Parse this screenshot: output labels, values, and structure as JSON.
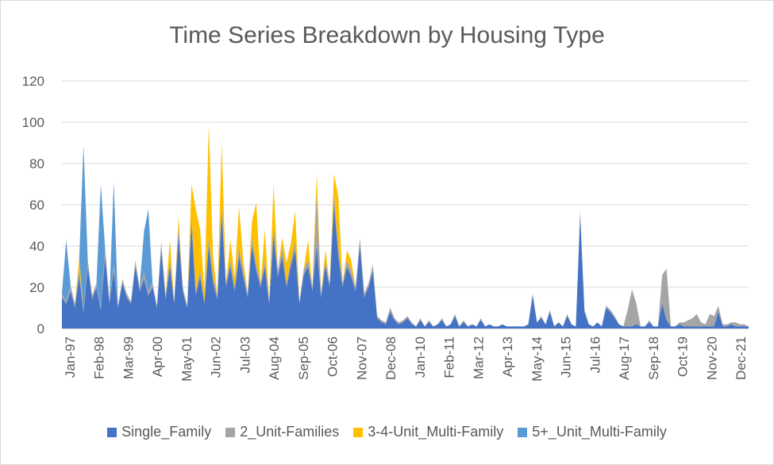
{
  "chart_data": {
    "type": "area",
    "title": "Time Series Breakdown by Housing Type",
    "xlabel": "",
    "ylabel": "",
    "ylim": [
      0,
      120
    ],
    "y_ticks": [
      0,
      20,
      40,
      60,
      80,
      100,
      120
    ],
    "stacked": true,
    "grid": true,
    "legend_position": "bottom",
    "x_tick_labels": [
      "Jan-97",
      "Feb-98",
      "Mar-99",
      "Apr-00",
      "May-01",
      "Jun-02",
      "Jul-03",
      "Aug-04",
      "Sep-05",
      "Oct-06",
      "Nov-07",
      "Dec-08",
      "Jan-10",
      "Feb-11",
      "Mar-12",
      "Apr-13",
      "May-14",
      "Jun-15",
      "Jul-16",
      "Aug-17",
      "Sep-18",
      "Oct-19",
      "Nov-20",
      "Dec-21"
    ],
    "series": [
      {
        "name": "Single_Family",
        "color": "#4472c4",
        "values": [
          15,
          12,
          18,
          10,
          25,
          8,
          30,
          14,
          20,
          9,
          35,
          12,
          28,
          10,
          22,
          15,
          12,
          30,
          18,
          24,
          16,
          20,
          10,
          38,
          14,
          30,
          12,
          45,
          18,
          10,
          50,
          16,
          25,
          12,
          40,
          22,
          14,
          55,
          20,
          30,
          18,
          35,
          25,
          15,
          40,
          28,
          20,
          30,
          12,
          45,
          25,
          35,
          20,
          30,
          38,
          12,
          26,
          30,
          18,
          40,
          15,
          30,
          20,
          60,
          35,
          20,
          30,
          25,
          18,
          40,
          15,
          20,
          28,
          5,
          3,
          2,
          8,
          4,
          2,
          3,
          5,
          2,
          1,
          4,
          1,
          3,
          1,
          2,
          4,
          1,
          2,
          6,
          1,
          3,
          1,
          2,
          1,
          4,
          1,
          2,
          1,
          1,
          2,
          1,
          1,
          1,
          1,
          1,
          2,
          16,
          3,
          5,
          2,
          8,
          1,
          3,
          1,
          6,
          2,
          1,
          55,
          8,
          2,
          1,
          3,
          1,
          10,
          8,
          5,
          2,
          1,
          1,
          1,
          2,
          1,
          1,
          3,
          1,
          1,
          12,
          4,
          1,
          1,
          2,
          1,
          1,
          1,
          1,
          1,
          1,
          1,
          1,
          8,
          1,
          1,
          2,
          1,
          1,
          1,
          1
        ]
      },
      {
        "name": "2_Unit-Families",
        "color": "#a5a5a5",
        "values": [
          2,
          1,
          3,
          2,
          4,
          1,
          3,
          2,
          2,
          1,
          4,
          2,
          3,
          1,
          2,
          2,
          1,
          3,
          2,
          3,
          2,
          2,
          1,
          4,
          2,
          3,
          1,
          4,
          2,
          1,
          5,
          2,
          3,
          1,
          4,
          3,
          2,
          5,
          2,
          3,
          2,
          4,
          3,
          2,
          4,
          3,
          2,
          3,
          1,
          5,
          3,
          4,
          2,
          3,
          4,
          1,
          3,
          3,
          2,
          25,
          2,
          3,
          2,
          5,
          4,
          2,
          3,
          3,
          2,
          4,
          2,
          2,
          3,
          1,
          1,
          1,
          2,
          1,
          1,
          1,
          1,
          1,
          0,
          1,
          0,
          1,
          0,
          0,
          1,
          0,
          0,
          1,
          0,
          1,
          0,
          0,
          0,
          1,
          0,
          0,
          0,
          0,
          0,
          0,
          0,
          0,
          0,
          0,
          0,
          1,
          0,
          1,
          0,
          1,
          0,
          0,
          0,
          1,
          0,
          0,
          2,
          1,
          0,
          0,
          0,
          0,
          1,
          1,
          1,
          0,
          0,
          8,
          18,
          10,
          0,
          0,
          1,
          0,
          0,
          14,
          25,
          0,
          0,
          1,
          2,
          3,
          4,
          6,
          2,
          1,
          6,
          5,
          3,
          1,
          1,
          1,
          2,
          1,
          1
        ]
      },
      {
        "name": "3-4-Unit_Multi-Family",
        "color": "#ffc000",
        "values": [
          0,
          0,
          0,
          0,
          5,
          0,
          0,
          0,
          0,
          0,
          0,
          0,
          0,
          0,
          0,
          0,
          0,
          0,
          0,
          0,
          0,
          0,
          0,
          0,
          0,
          10,
          0,
          5,
          0,
          0,
          15,
          40,
          20,
          5,
          55,
          10,
          0,
          30,
          0,
          10,
          5,
          20,
          5,
          0,
          8,
          30,
          0,
          15,
          0,
          20,
          0,
          5,
          10,
          8,
          15,
          0,
          0,
          10,
          0,
          10,
          0,
          5,
          0,
          10,
          25,
          0,
          5,
          5,
          0,
          0,
          0,
          0,
          0,
          0,
          0,
          0,
          0,
          0,
          0,
          0,
          0,
          0,
          0,
          0,
          0,
          0,
          0,
          0,
          0,
          0,
          0,
          0,
          0,
          0,
          0,
          0,
          0,
          0,
          0,
          0,
          0,
          0,
          0,
          0,
          0,
          0,
          0,
          0,
          0,
          0,
          0,
          0,
          0,
          0,
          0,
          0,
          0,
          0,
          0,
          0,
          0,
          0,
          0,
          0,
          0,
          0,
          0,
          0,
          0,
          0,
          0,
          0,
          0,
          0,
          0,
          0,
          0,
          0,
          0,
          0,
          0,
          0,
          0,
          0,
          0,
          0,
          0,
          0,
          0,
          0,
          0,
          0,
          0,
          0,
          0,
          0,
          0,
          0,
          0
        ]
      },
      {
        "name": "5+_Unit_Multi-Family",
        "color": "#5b9bd5",
        "values": [
          0,
          30,
          0,
          0,
          0,
          80,
          0,
          0,
          0,
          60,
          0,
          0,
          40,
          0,
          0,
          0,
          0,
          0,
          0,
          20,
          40,
          0,
          0,
          0,
          0,
          0,
          0,
          0,
          0,
          0,
          0,
          0,
          0,
          0,
          0,
          0,
          0,
          0,
          0,
          0,
          0,
          0,
          0,
          0,
          0,
          0,
          0,
          0,
          0,
          0,
          0,
          0,
          0,
          0,
          0,
          0,
          0,
          0,
          0,
          0,
          0,
          0,
          0,
          0,
          0,
          0,
          0,
          0,
          0,
          0,
          0,
          0,
          0,
          0,
          0,
          0,
          0,
          0,
          0,
          0,
          0,
          0,
          0,
          0,
          0,
          0,
          0,
          0,
          0,
          0,
          0,
          0,
          0,
          0,
          0,
          0,
          0,
          0,
          0,
          0,
          0,
          0,
          0,
          0,
          0,
          0,
          0,
          0,
          0,
          0,
          0,
          0,
          0,
          0,
          0,
          0,
          0,
          0,
          0,
          0,
          0,
          0,
          0,
          0,
          0,
          0,
          0,
          0,
          0,
          0,
          0,
          0,
          0,
          0,
          0,
          0,
          0,
          0,
          0,
          0,
          0,
          0,
          0,
          0,
          0,
          0,
          0,
          0,
          0,
          0,
          0,
          0,
          0,
          0,
          0,
          0,
          0,
          0,
          0
        ]
      }
    ]
  }
}
